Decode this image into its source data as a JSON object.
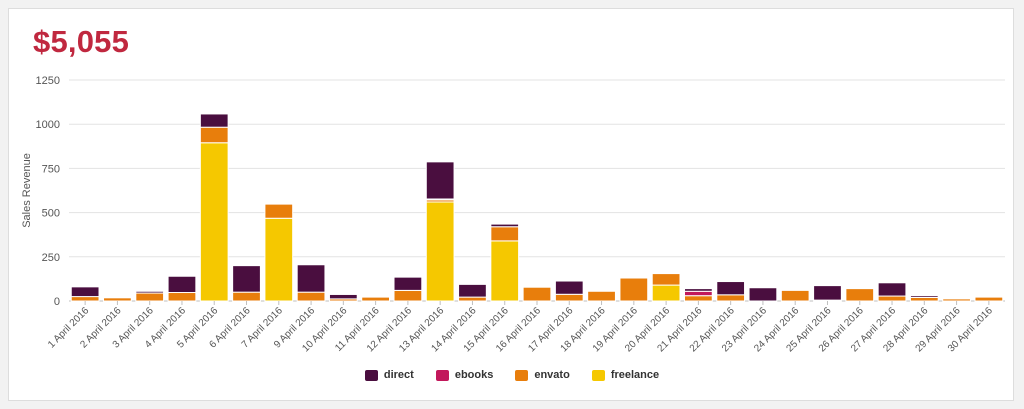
{
  "header": {
    "total": "$5,055"
  },
  "chart_data": {
    "type": "bar",
    "stacked": true,
    "ylabel": "Sales Revenue",
    "xlabel": "",
    "ylim": [
      0,
      1250
    ],
    "yticks": [
      0,
      250,
      500,
      750,
      1000,
      1250
    ],
    "grid": true,
    "legend_position": "bottom-center",
    "categories": [
      "1 April 2016",
      "2 April 2016",
      "3 April 2016",
      "4 April 2016",
      "5 April 2016",
      "6 April 2016",
      "7 April 2016",
      "9 April 2016",
      "10 April 2016",
      "11 April 2016",
      "12 April 2016",
      "13 April 2016",
      "14 April 2016",
      "15 April 2016",
      "16 April 2016",
      "17 April 2016",
      "18 April 2016",
      "19 April 2016",
      "20 April 2016",
      "21 April 2016",
      "22 April 2016",
      "23 April 2016",
      "24 April 2016",
      "25 April 2016",
      "26 April 2016",
      "27 April 2016",
      "28 April 2016",
      "29 April 2016",
      "30 April 2016"
    ],
    "series": [
      {
        "name": "freelance",
        "color": "#f5c800",
        "values": [
          0,
          0,
          0,
          0,
          895,
          0,
          468,
          0,
          0,
          0,
          0,
          560,
          0,
          340,
          0,
          0,
          0,
          0,
          90,
          0,
          0,
          0,
          0,
          0,
          0,
          0,
          0,
          0,
          0
        ]
      },
      {
        "name": "envato",
        "color": "#e87e0c",
        "values": [
          25,
          18,
          45,
          48,
          88,
          50,
          80,
          50,
          12,
          22,
          60,
          12,
          22,
          80,
          78,
          38,
          55,
          130,
          65,
          30,
          35,
          0,
          60,
          5,
          70,
          28,
          20,
          12,
          22
        ]
      },
      {
        "name": "ebooks",
        "color": "#c2185b",
        "values": [
          0,
          0,
          0,
          0,
          0,
          0,
          0,
          0,
          0,
          0,
          0,
          5,
          0,
          0,
          0,
          0,
          0,
          0,
          0,
          25,
          0,
          0,
          0,
          0,
          0,
          0,
          0,
          0,
          0
        ]
      },
      {
        "name": "direct",
        "color": "#4a0e3f",
        "values": [
          55,
          0,
          10,
          92,
          75,
          150,
          0,
          155,
          25,
          0,
          75,
          210,
          72,
          15,
          0,
          75,
          0,
          0,
          0,
          15,
          75,
          75,
          0,
          82,
          0,
          75,
          10,
          0,
          0
        ]
      }
    ]
  }
}
